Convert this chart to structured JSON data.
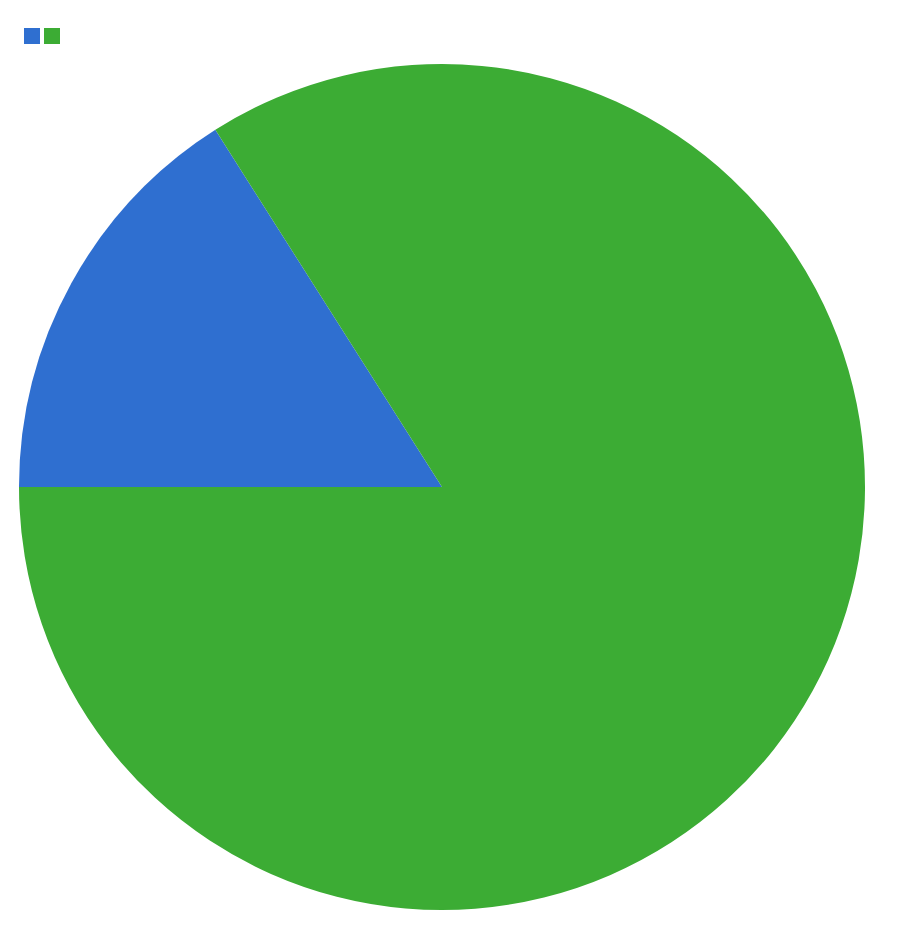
{
  "chart_data": {
    "type": "pie",
    "categories": [
      null,
      null
    ],
    "values": [
      16,
      84
    ],
    "colors": [
      "#2f6fd0",
      "#3cac34"
    ]
  }
}
